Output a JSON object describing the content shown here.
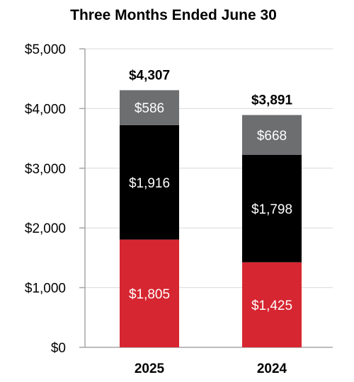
{
  "chart_data": {
    "type": "bar",
    "stacked": true,
    "title": "Three Months Ended June 30",
    "xlabel": "",
    "ylabel": "",
    "categories": [
      "2025",
      "2024"
    ],
    "series": [
      {
        "values": [
          1805,
          1425
        ],
        "labels": [
          "$1,805",
          "$1,425"
        ],
        "color": "#d62631"
      },
      {
        "values": [
          1916,
          1798
        ],
        "labels": [
          "$1,916",
          "$1,798"
        ],
        "color": "#000000"
      },
      {
        "values": [
          586,
          668
        ],
        "labels": [
          "$586",
          "$668"
        ],
        "color": "#6d6e70"
      }
    ],
    "totals": [
      4307,
      3891
    ],
    "total_labels": [
      "$4,307",
      "$3,891"
    ],
    "ylim": [
      0,
      5000
    ],
    "yticks": [
      0,
      1000,
      2000,
      3000,
      4000,
      5000
    ],
    "ytick_labels": [
      "$0",
      "$1,000",
      "$2,000",
      "$3,000",
      "$4,000",
      "$5,000"
    ],
    "grid": true,
    "legend": "none"
  }
}
